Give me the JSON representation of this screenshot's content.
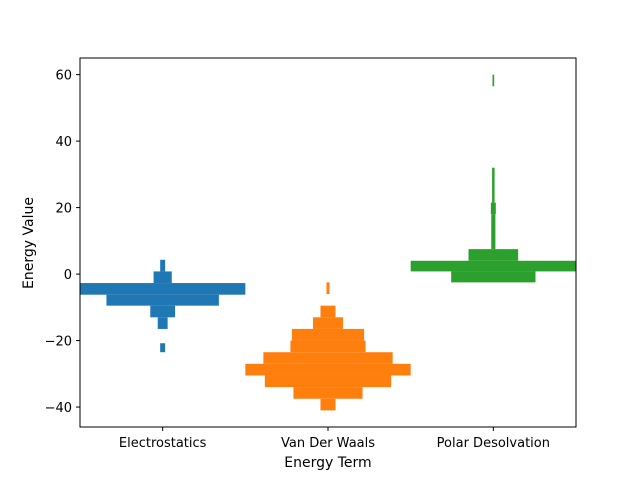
{
  "chart_data": {
    "type": "histogram",
    "orientation": "mirrored-horizontal",
    "xlabel": "Energy Term",
    "ylabel": "Energy Value",
    "categories": [
      "Electrostatics",
      "Van Der Waals",
      "Polar Desolvation"
    ],
    "ylim": [
      -46,
      65
    ],
    "yticks": [
      -40,
      -20,
      0,
      20,
      40,
      60
    ],
    "ytick_labels": [
      "−40",
      "−20",
      "0",
      "20",
      "40",
      "60"
    ],
    "grid": false,
    "series": [
      {
        "color": "#1f77b4",
        "bins": [
          {
            "y0": -23.5,
            "y1": -20.8,
            "count": 0.3
          },
          {
            "y0": -16.5,
            "y1": -13.0,
            "count": 0.6
          },
          {
            "y0": -13.0,
            "y1": -9.5,
            "count": 1.5
          },
          {
            "y0": -9.5,
            "y1": -6.2,
            "count": 6.8
          },
          {
            "y0": -6.2,
            "y1": -2.7,
            "count": 10
          },
          {
            "y0": -2.7,
            "y1": 0.8,
            "count": 1.1
          },
          {
            "y0": 0.8,
            "y1": 4.3,
            "count": 0.3
          }
        ]
      },
      {
        "color": "#ff7f0e",
        "bins": [
          {
            "y0": -41.0,
            "y1": -37.5,
            "count": 0.5
          },
          {
            "y0": -37.5,
            "y1": -34.0,
            "count": 2.3
          },
          {
            "y0": -34.0,
            "y1": -30.5,
            "count": 4.2
          },
          {
            "y0": -30.5,
            "y1": -27.0,
            "count": 5.5
          },
          {
            "y0": -27.0,
            "y1": -23.5,
            "count": 4.3
          },
          {
            "y0": -23.5,
            "y1": -20.0,
            "count": 2.5
          },
          {
            "y0": -20.0,
            "y1": -16.5,
            "count": 2.4
          },
          {
            "y0": -16.5,
            "y1": -13.0,
            "count": 1.0
          },
          {
            "y0": -13.0,
            "y1": -9.5,
            "count": 0.5
          },
          {
            "y0": -6.0,
            "y1": -2.5,
            "count": 0.1
          }
        ]
      },
      {
        "color": "#2ca02c",
        "bins": [
          {
            "y0": 56.5,
            "y1": 60.0,
            "count": 0.1
          },
          {
            "y0": 21.5,
            "y1": 32.0,
            "count": 0.15
          },
          {
            "y0": 18.0,
            "y1": 21.5,
            "count": 0.3
          },
          {
            "y0": 7.5,
            "y1": 18.0,
            "count": 0.25
          },
          {
            "y0": 4.0,
            "y1": 7.5,
            "count": 3.0
          },
          {
            "y0": 0.8,
            "y1": 4.0,
            "count": 10
          },
          {
            "y0": -2.5,
            "y1": 0.8,
            "count": 5.1
          }
        ]
      }
    ]
  }
}
